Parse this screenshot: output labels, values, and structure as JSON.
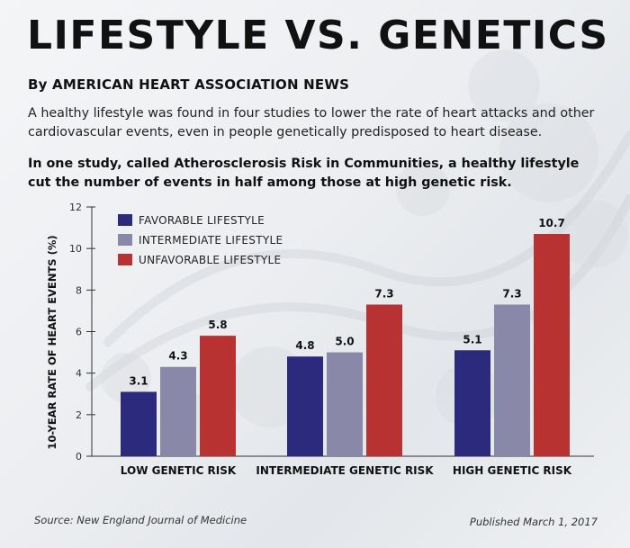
{
  "header": {
    "title": "LIFESTYLE VS. GENETICS",
    "byline": "By AMERICAN HEART ASSOCIATION NEWS",
    "intro": "A healthy lifestyle was found in four studies to lower the rate of heart attacks and other cardiovascular events, even in people genetically predisposed to heart disease.",
    "study": "In one study, called Atherosclerosis Risk in Communities, a healthy lifestyle cut the number of events in half among those at high genetic risk."
  },
  "footer": {
    "source": "Source: New England Journal of Medicine",
    "published": "Published March 1, 2017"
  },
  "chart_data": {
    "type": "bar",
    "title": "",
    "xlabel": "",
    "ylabel": "10-YEAR RATE OF HEART EVENTS (%)",
    "ylim": [
      0,
      12
    ],
    "yticks": [
      0,
      2,
      4,
      6,
      8,
      10,
      12
    ],
    "grid": false,
    "legend_position": "top-left",
    "categories": [
      "LOW GENETIC RISK",
      "INTERMEDIATE GENETIC RISK",
      "HIGH GENETIC RISK"
    ],
    "series": [
      {
        "name": "FAVORABLE LIFESTYLE",
        "color": "#2b2a7c",
        "values": [
          3.1,
          4.8,
          5.1
        ]
      },
      {
        "name": "INTERMEDIATE LIFESTYLE",
        "color": "#8a88a8",
        "values": [
          4.3,
          5.0,
          7.3
        ]
      },
      {
        "name": "UNFAVORABLE LIFESTYLE",
        "color": "#b83232",
        "values": [
          5.8,
          7.3,
          10.7
        ]
      }
    ]
  }
}
